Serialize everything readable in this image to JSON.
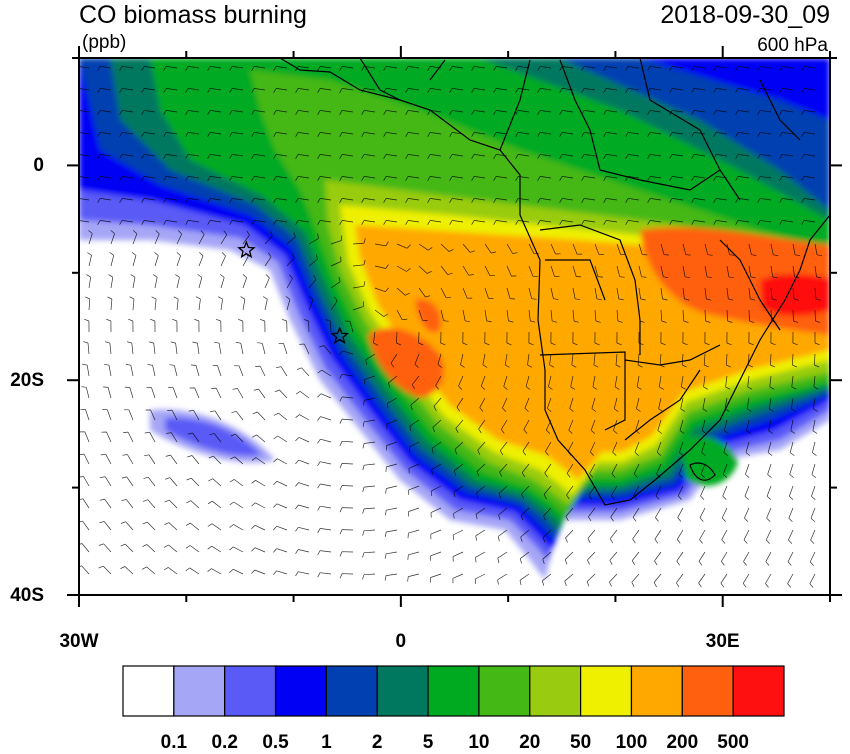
{
  "header": {
    "title": "CO biomass burning",
    "units": "(ppb)",
    "timestamp": "2018-09-30_09",
    "level": "600 hPa"
  },
  "map": {
    "lon_range": [
      -30,
      40
    ],
    "lat_range": [
      -40,
      10
    ],
    "x_ticks": [
      {
        "value": -30,
        "label": "30W"
      },
      {
        "value": 0,
        "label": "0"
      },
      {
        "value": 30,
        "label": "30E"
      }
    ],
    "y_ticks": [
      {
        "value": 0,
        "label": "0"
      },
      {
        "value": -20,
        "label": "20S"
      },
      {
        "value": -40,
        "label": "40S"
      }
    ],
    "markers": [
      {
        "name": "star-marker-ascension",
        "lon": -14.4,
        "lat": -7.9
      },
      {
        "name": "star-marker-st-helena",
        "lon": -5.7,
        "lat": -15.9
      }
    ],
    "overlays": [
      "wind barbs",
      "country borders",
      "coastlines"
    ]
  },
  "colorbar": {
    "colors": [
      "#ffffff",
      "#a6a6f7",
      "#5a5af7",
      "#0000f5",
      "#0040b0",
      "#007860",
      "#00aa20",
      "#44b814",
      "#99cc10",
      "#eef000",
      "#ffa800",
      "#ff6010",
      "#ff1010"
    ],
    "labels": [
      "0.1",
      "0.2",
      "0.5",
      "1",
      "2",
      "5",
      "10",
      "20",
      "50",
      "100",
      "200",
      "500"
    ]
  }
}
